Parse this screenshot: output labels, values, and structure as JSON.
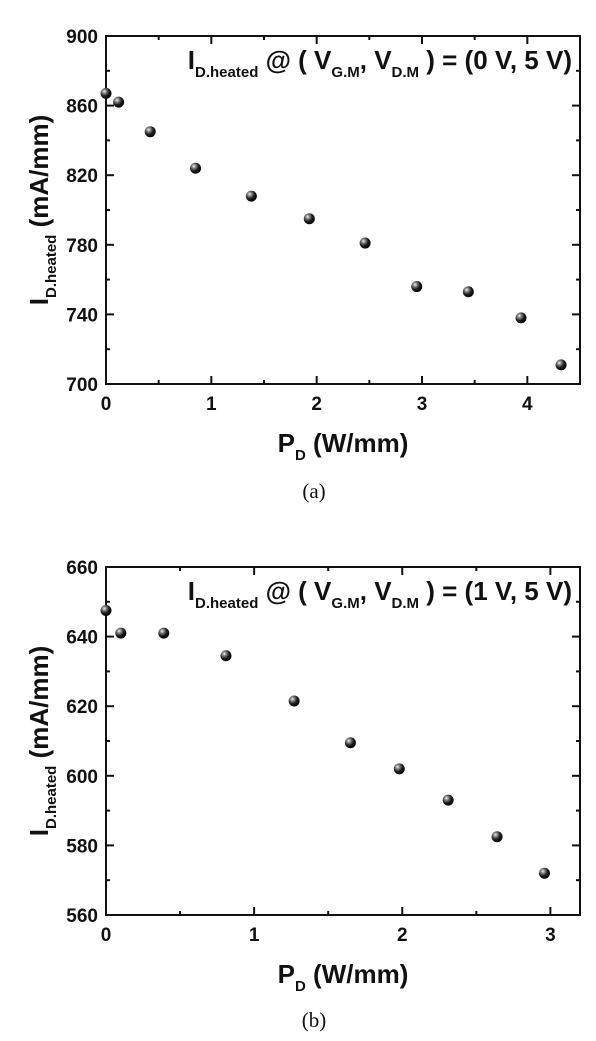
{
  "chart_data": [
    {
      "type": "scatter",
      "caption": "(a)",
      "xlabel": {
        "main": "P",
        "sub": "D",
        "unit": " (W/mm)"
      },
      "ylabel": {
        "main": "I",
        "sub": "D.heated",
        "unit": " (mA/mm)"
      },
      "xlim": [
        0,
        4.5
      ],
      "ylim": [
        700,
        900
      ],
      "xticks": [
        0,
        1,
        2,
        3,
        4
      ],
      "yticks": [
        700,
        740,
        780,
        820,
        860,
        900
      ],
      "annotation": {
        "p1": "I",
        "s1": "D.heated",
        "p2": " @ ( V",
        "s2": "G.M",
        "p3": ", V",
        "s3": "D.M",
        "p4": " ) = (0 V, 5 V)"
      },
      "x": [
        0.0,
        0.12,
        0.42,
        0.85,
        1.38,
        1.93,
        2.46,
        2.95,
        3.44,
        3.94,
        4.32
      ],
      "y": [
        867,
        862,
        845,
        824,
        808,
        795,
        781,
        756,
        753,
        738,
        711
      ]
    },
    {
      "type": "scatter",
      "caption": "(b)",
      "xlabel": {
        "main": "P",
        "sub": "D",
        "unit": " (W/mm)"
      },
      "ylabel": {
        "main": "I",
        "sub": "D.heated",
        "unit": " (mA/mm)"
      },
      "xlim": [
        0,
        3.2
      ],
      "ylim": [
        560,
        660
      ],
      "xticks": [
        0,
        1,
        2,
        3
      ],
      "yticks": [
        560,
        580,
        600,
        620,
        640,
        660
      ],
      "annotation": {
        "p1": "I",
        "s1": "D.heated",
        "p2": " @ ( V",
        "s2": "G.M",
        "p3": ", V",
        "s3": "D.M",
        "p4": " ) = (1 V, 5 V)"
      },
      "x": [
        0.0,
        0.1,
        0.39,
        0.81,
        1.27,
        1.65,
        1.98,
        2.31,
        2.64,
        2.96
      ],
      "y": [
        647.5,
        641,
        641,
        634.5,
        621.5,
        609.5,
        602,
        593,
        582.5,
        572
      ]
    }
  ]
}
